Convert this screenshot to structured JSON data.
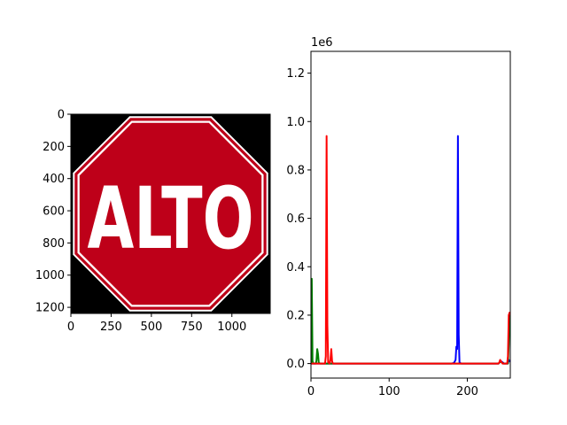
{
  "figure": {
    "left_panel": {
      "type": "image",
      "description_text": "ALTO",
      "sign_colors": {
        "red": "#be0019",
        "white": "#ffffff",
        "background": "#000000"
      },
      "x_ticks": [
        "0",
        "250",
        "500",
        "750",
        "1000"
      ],
      "y_ticks": [
        "0",
        "200",
        "400",
        "600",
        "800",
        "1000",
        "1200"
      ]
    }
  },
  "chart_data": {
    "type": "line",
    "title": "",
    "xlabel": "",
    "ylabel": "",
    "xlim": [
      0,
      255
    ],
    "ylim": [
      -60000,
      1290000
    ],
    "scale_label": "1e6",
    "x_ticks": [
      0,
      100,
      200
    ],
    "x_tick_labels": [
      "0",
      "100",
      "200"
    ],
    "y_ticks": [
      0,
      200000,
      400000,
      600000,
      800000,
      1000000,
      1200000
    ],
    "y_tick_labels": [
      "0.0",
      "0.2",
      "0.4",
      "0.6",
      "0.8",
      "1.0",
      "1.2"
    ],
    "series": [
      {
        "color": "#0000ff",
        "points": [
          [
            0,
            0
          ],
          [
            180,
            0
          ],
          [
            183,
            3000
          ],
          [
            185,
            15000
          ],
          [
            186,
            70000
          ],
          [
            187,
            60000
          ],
          [
            188,
            940000
          ],
          [
            189,
            120000
          ],
          [
            190,
            5000
          ],
          [
            192,
            0
          ],
          [
            240,
            0
          ],
          [
            243,
            10000
          ],
          [
            245,
            5000
          ],
          [
            247,
            0
          ],
          [
            252,
            0
          ],
          [
            253,
            15000
          ],
          [
            254,
            10000
          ],
          [
            255,
            8000
          ]
        ]
      },
      {
        "color": "#008000",
        "points": [
          [
            0,
            0
          ],
          [
            1,
            350000
          ],
          [
            2,
            10000
          ],
          [
            3,
            0
          ],
          [
            6,
            0
          ],
          [
            7,
            10000
          ],
          [
            8,
            60000
          ],
          [
            9,
            40000
          ],
          [
            10,
            3000
          ],
          [
            12,
            0
          ],
          [
            240,
            0
          ],
          [
            242,
            8000
          ],
          [
            244,
            5000
          ],
          [
            246,
            0
          ],
          [
            252,
            0
          ],
          [
            253,
            80000
          ],
          [
            254,
            200000
          ],
          [
            255,
            180000
          ]
        ]
      },
      {
        "color": "#ff0000",
        "points": [
          [
            0,
            0
          ],
          [
            18,
            0
          ],
          [
            19,
            30000
          ],
          [
            20,
            940000
          ],
          [
            21,
            160000
          ],
          [
            22,
            5000
          ],
          [
            24,
            0
          ],
          [
            25,
            20000
          ],
          [
            26,
            60000
          ],
          [
            27,
            10000
          ],
          [
            28,
            0
          ],
          [
            240,
            0
          ],
          [
            241,
            5000
          ],
          [
            242,
            15000
          ],
          [
            243,
            10000
          ],
          [
            245,
            0
          ],
          [
            251,
            0
          ],
          [
            252,
            30000
          ],
          [
            253,
            200000
          ],
          [
            254,
            210000
          ],
          [
            255,
            200000
          ]
        ]
      }
    ]
  }
}
